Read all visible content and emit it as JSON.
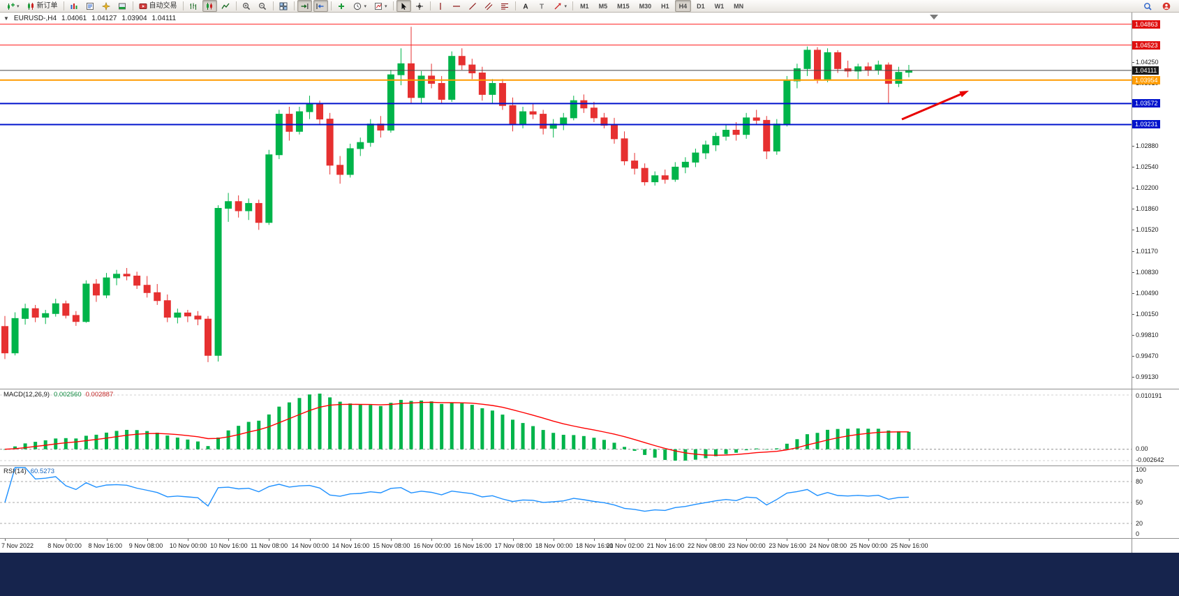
{
  "toolbar": {
    "groups": [
      [
        {
          "name": "new-chart",
          "icon": "new-chart",
          "caret": true
        },
        {
          "name": "new-order",
          "icon": "new-order",
          "label": "新订单"
        }
      ],
      [
        {
          "name": "market-watch",
          "icon": "market-watch"
        },
        {
          "name": "data-window",
          "icon": "data-window"
        },
        {
          "name": "navigator",
          "icon": "navigator"
        },
        {
          "name": "terminal",
          "icon": "terminal"
        }
      ],
      [
        {
          "name": "auto-trading",
          "icon": "auto-trading",
          "label": "自动交易"
        }
      ],
      [
        {
          "name": "chart-bars",
          "icon": "chart-bars"
        },
        {
          "name": "chart-candles",
          "icon": "chart-candles",
          "active": true
        },
        {
          "name": "chart-line",
          "icon": "chart-line"
        }
      ],
      [
        {
          "name": "zoom-in",
          "icon": "zoom-in"
        },
        {
          "name": "zoom-out",
          "icon": "zoom-out"
        }
      ],
      [
        {
          "name": "tile-windows",
          "icon": "tile-windows"
        }
      ],
      [
        {
          "name": "auto-scroll",
          "icon": "auto-scroll",
          "active": true
        },
        {
          "name": "chart-shift",
          "icon": "chart-shift",
          "active": true
        }
      ],
      [
        {
          "name": "indicators",
          "icon": "indicators"
        },
        {
          "name": "periods",
          "icon": "periods",
          "caret": true
        },
        {
          "name": "templates",
          "icon": "templates",
          "caret": true
        }
      ],
      [
        {
          "name": "cursor",
          "icon": "cursor",
          "active": true
        },
        {
          "name": "crosshair",
          "icon": "crosshair"
        }
      ],
      [
        {
          "name": "vertical-line",
          "icon": "vline"
        },
        {
          "name": "horizontal-line",
          "icon": "hline"
        },
        {
          "name": "trendline",
          "icon": "trendline"
        },
        {
          "name": "equidistant-channel",
          "icon": "channel"
        },
        {
          "name": "fibonacci",
          "icon": "fibonacci"
        }
      ],
      [
        {
          "name": "text",
          "icon": "text"
        },
        {
          "name": "text-label",
          "icon": "text-label"
        },
        {
          "name": "arrows",
          "icon": "arrows",
          "caret": true
        }
      ]
    ],
    "timeframes": [
      {
        "label": "M1"
      },
      {
        "label": "M5"
      },
      {
        "label": "M15"
      },
      {
        "label": "M30"
      },
      {
        "label": "H1"
      },
      {
        "label": "H4",
        "active": true
      },
      {
        "label": "D1"
      },
      {
        "label": "W1"
      },
      {
        "label": "MN"
      }
    ],
    "right_icons": [
      {
        "name": "search",
        "icon": "search"
      },
      {
        "name": "notifications",
        "icon": "notifications"
      }
    ]
  },
  "chart": {
    "title": {
      "symbol": "EURUSD-,H4",
      "open": "1.04061",
      "high": "1.04127",
      "low": "1.03904",
      "close": "1.04111"
    },
    "lines": [
      {
        "price": 1.04863,
        "color": "#ff2020",
        "w": 1
      },
      {
        "price": 1.04523,
        "color": "#ff2020",
        "w": 1
      },
      {
        "price": 1.04111,
        "color": "#444444",
        "w": 1
      },
      {
        "price": 1.03954,
        "color": "#ff9c00",
        "w": 2
      },
      {
        "price": 1.03572,
        "color": "#0013cc",
        "w": 2
      },
      {
        "price": 1.03231,
        "color": "#0013cc",
        "w": 2
      }
    ],
    "arrow": {
      "color": "#e80000"
    },
    "price_axis": {
      "ticks": [
        "1.04250",
        "1.03910",
        "1.03570",
        "1.03230",
        "1.02880",
        "1.02540",
        "1.02200",
        "1.01860",
        "1.01520",
        "1.01170",
        "1.00830",
        "1.00490",
        "1.00150",
        "0.99810",
        "0.99470",
        "0.99130"
      ],
      "tags": [
        {
          "text": "1.04863",
          "price": 1.04863,
          "bg": "#e01010"
        },
        {
          "text": "1.04523",
          "price": 1.04523,
          "bg": "#e01010"
        },
        {
          "text": "1.04111",
          "price": 1.04111,
          "bg": "#1a1a1a"
        },
        {
          "text": "1.03954",
          "price": 1.03954,
          "bg": "#ff9c00"
        },
        {
          "text": "1.03572",
          "price": 1.03572,
          "bg": "#0013cc"
        },
        {
          "text": "1.03231",
          "price": 1.03231,
          "bg": "#0013cc"
        }
      ]
    },
    "time_axis": [
      {
        "i": 0,
        "t": "7 Nov 2022"
      },
      {
        "i": 6,
        "t": "8 Nov 00:00"
      },
      {
        "i": 10,
        "t": "8 Nov 16:00"
      },
      {
        "i": 14,
        "t": "9 Nov 08:00"
      },
      {
        "i": 18,
        "t": "10 Nov 00:00"
      },
      {
        "i": 22,
        "t": "10 Nov 16:00"
      },
      {
        "i": 26,
        "t": "11 Nov 08:00"
      },
      {
        "i": 30,
        "t": "14 Nov 00:00"
      },
      {
        "i": 34,
        "t": "14 Nov 16:00"
      },
      {
        "i": 38,
        "t": "15 Nov 08:00"
      },
      {
        "i": 42,
        "t": "16 Nov 00:00"
      },
      {
        "i": 46,
        "t": "16 Nov 16:00"
      },
      {
        "i": 50,
        "t": "17 Nov 08:00"
      },
      {
        "i": 54,
        "t": "18 Nov 00:00"
      },
      {
        "i": 58,
        "t": "18 Nov 16:00"
      },
      {
        "i": 61,
        "t": "21 Nov 02:00"
      },
      {
        "i": 65,
        "t": "21 Nov 16:00"
      },
      {
        "i": 69,
        "t": "22 Nov 08:00"
      },
      {
        "i": 73,
        "t": "23 Nov 00:00"
      },
      {
        "i": 77,
        "t": "23 Nov 16:00"
      },
      {
        "i": 81,
        "t": "24 Nov 08:00"
      },
      {
        "i": 85,
        "t": "25 Nov 00:00"
      },
      {
        "i": 89,
        "t": "25 Nov 16:00"
      }
    ]
  },
  "chart_data": {
    "type": "candlestick",
    "symbol": "EURUSD",
    "period": "H4",
    "ylim": [
      0.98927,
      1.05051
    ],
    "up_color": "#00b44a",
    "down_color": "#e63030",
    "candles": [
      [
        0.9995,
        1.0012,
        0.9942,
        0.9952
      ],
      [
        0.9952,
        1.0018,
        0.9948,
        1.0008
      ],
      [
        1.0008,
        1.0032,
        0.9998,
        1.0024
      ],
      [
        1.0024,
        1.003,
        1.0002,
        1.001
      ],
      [
        1.001,
        1.0022,
        0.9999,
        1.0016
      ],
      [
        1.0016,
        1.004,
        1.0011,
        1.0032
      ],
      [
        1.0032,
        1.0037,
        1.0008,
        1.0013
      ],
      [
        1.0013,
        1.002,
        0.9996,
        1.0003
      ],
      [
        1.0003,
        1.007,
        1.0001,
        1.0064
      ],
      [
        1.0064,
        1.0072,
        1.0035,
        1.0046
      ],
      [
        1.0046,
        1.0082,
        1.0041,
        1.0074
      ],
      [
        1.0074,
        1.0087,
        1.0062,
        1.008
      ],
      [
        1.008,
        1.009,
        1.007,
        1.0077
      ],
      [
        1.0077,
        1.0084,
        1.0056,
        1.0062
      ],
      [
        1.0062,
        1.0077,
        1.0042,
        1.005
      ],
      [
        1.005,
        1.0064,
        1.003,
        1.0037
      ],
      [
        1.0037,
        1.0047,
        1.0002,
        1.001
      ],
      [
        1.001,
        1.0024,
        1.0,
        1.0017
      ],
      [
        1.0017,
        1.0022,
        1.0002,
        1.0012
      ],
      [
        1.0012,
        1.002,
        0.9997,
        1.0007
      ],
      [
        1.0007,
        1.0012,
        0.9937,
        0.9948
      ],
      [
        0.9948,
        1.0192,
        0.9938,
        1.0187
      ],
      [
        1.0187,
        1.0212,
        1.0165,
        1.0198
      ],
      [
        1.0198,
        1.0208,
        1.0172,
        1.0183
      ],
      [
        1.0183,
        1.0203,
        1.0168,
        1.0195
      ],
      [
        1.0195,
        1.0201,
        1.0152,
        1.0164
      ],
      [
        1.0164,
        1.0282,
        1.016,
        1.0274
      ],
      [
        1.0274,
        1.0347,
        1.0267,
        1.034
      ],
      [
        1.034,
        1.0352,
        1.0297,
        1.0312
      ],
      [
        1.0312,
        1.0352,
        1.0307,
        1.0344
      ],
      [
        1.0344,
        1.037,
        1.0332,
        1.0357
      ],
      [
        1.0357,
        1.0362,
        1.0322,
        1.0332
      ],
      [
        1.0332,
        1.0342,
        1.0242,
        1.0257
      ],
      [
        1.0257,
        1.0272,
        1.0227,
        1.0242
      ],
      [
        1.0242,
        1.0292,
        1.0237,
        1.0284
      ],
      [
        1.0284,
        1.0302,
        1.0272,
        1.0294
      ],
      [
        1.0294,
        1.0332,
        1.0287,
        1.0324
      ],
      [
        1.0324,
        1.0337,
        1.0302,
        1.0314
      ],
      [
        1.0314,
        1.0412,
        1.031,
        1.0404
      ],
      [
        1.0404,
        1.0447,
        1.0387,
        1.0422
      ],
      [
        1.0422,
        1.0482,
        1.0357,
        1.0367
      ],
      [
        1.0367,
        1.041,
        1.0357,
        1.0402
      ],
      [
        1.0402,
        1.0422,
        1.0382,
        1.039
      ],
      [
        1.039,
        1.0402,
        1.0357,
        1.0364
      ],
      [
        1.0364,
        1.0442,
        1.036,
        1.0434
      ],
      [
        1.0434,
        1.0447,
        1.0412,
        1.042
      ],
      [
        1.042,
        1.043,
        1.0397,
        1.0407
      ],
      [
        1.0407,
        1.0417,
        1.0362,
        1.0372
      ],
      [
        1.0372,
        1.0397,
        1.0357,
        1.039
      ],
      [
        1.039,
        1.0397,
        1.0347,
        1.0354
      ],
      [
        1.0354,
        1.0367,
        1.0312,
        1.0324
      ],
      [
        1.0324,
        1.0352,
        1.0317,
        1.0344
      ],
      [
        1.0344,
        1.0357,
        1.0332,
        1.034
      ],
      [
        1.034,
        1.0347,
        1.0307,
        1.0317
      ],
      [
        1.0317,
        1.0332,
        1.0302,
        1.0324
      ],
      [
        1.0324,
        1.0342,
        1.0314,
        1.0334
      ],
      [
        1.0334,
        1.037,
        1.033,
        1.0362
      ],
      [
        1.0362,
        1.0372,
        1.0342,
        1.035
      ],
      [
        1.035,
        1.036,
        1.0327,
        1.0334
      ],
      [
        1.0334,
        1.0342,
        1.0317,
        1.0322
      ],
      [
        1.0322,
        1.0334,
        1.0292,
        1.03
      ],
      [
        1.03,
        1.0312,
        1.0257,
        1.0264
      ],
      [
        1.0264,
        1.0277,
        1.0242,
        1.0252
      ],
      [
        1.0252,
        1.026,
        1.0224,
        1.023
      ],
      [
        1.023,
        1.0247,
        1.0224,
        1.024
      ],
      [
        1.024,
        1.025,
        1.0227,
        1.0234
      ],
      [
        1.0234,
        1.0262,
        1.023,
        1.0254
      ],
      [
        1.0254,
        1.027,
        1.0244,
        1.0262
      ],
      [
        1.0262,
        1.0284,
        1.0254,
        1.0277
      ],
      [
        1.0277,
        1.0297,
        1.0267,
        1.029
      ],
      [
        1.029,
        1.031,
        1.028,
        1.0304
      ],
      [
        1.0304,
        1.0322,
        1.0297,
        1.0314
      ],
      [
        1.0314,
        1.0327,
        1.0297,
        1.0307
      ],
      [
        1.0307,
        1.0342,
        1.03,
        1.0334
      ],
      [
        1.0334,
        1.0347,
        1.0322,
        1.033
      ],
      [
        1.033,
        1.0337,
        1.0267,
        1.028
      ],
      [
        1.028,
        1.0332,
        1.0274,
        1.0324
      ],
      [
        1.0324,
        1.0402,
        1.032,
        1.0394
      ],
      [
        1.0394,
        1.0422,
        1.0382,
        1.0414
      ],
      [
        1.0414,
        1.045,
        1.0402,
        1.0444
      ],
      [
        1.0444,
        1.0449,
        1.039,
        1.0397
      ],
      [
        1.0397,
        1.0447,
        1.0392,
        1.044
      ],
      [
        1.044,
        1.0444,
        1.0407,
        1.0414
      ],
      [
        1.0414,
        1.0427,
        1.04,
        1.041
      ],
      [
        1.041,
        1.0422,
        1.0397,
        1.0417
      ],
      [
        1.0417,
        1.0424,
        1.0402,
        1.0412
      ],
      [
        1.0412,
        1.0427,
        1.0404,
        1.042
      ],
      [
        1.042,
        1.0424,
        1.0357,
        1.039
      ],
      [
        1.039,
        1.0417,
        1.0384,
        1.0408
      ],
      [
        1.0408,
        1.042,
        1.04,
        1.0411
      ]
    ]
  },
  "macd": {
    "label": "MACD(12,26,9)",
    "value1": "0.002560",
    "value2": "0.002887",
    "histogram_color": "#00b44a",
    "signal_color": "#ff0000",
    "scale_top": "0.010191",
    "scale_zero": "0.00",
    "scale_bottom": "-0.002642"
  },
  "rsi": {
    "label": "RSI(14)",
    "value": "60.5273",
    "line_color": "#1E90FF",
    "levels": [
      80,
      50,
      20
    ],
    "bounds_top": "100",
    "bounds_bottom": "0"
  }
}
